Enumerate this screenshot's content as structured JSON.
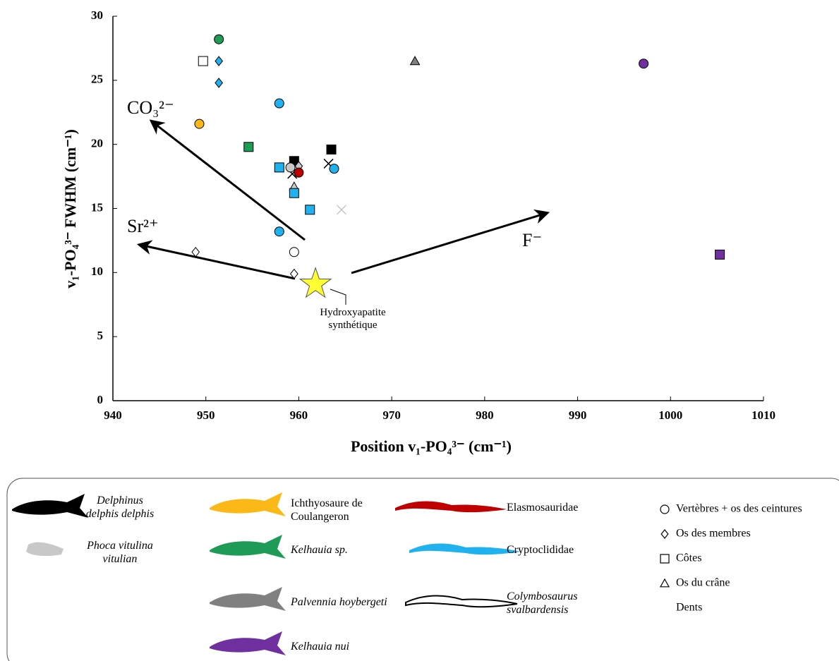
{
  "chart_data": {
    "type": "scatter",
    "xlabel": "Position v₁-PO₄³⁻ (cm⁻¹)",
    "ylabel": "v₁-PO₄³⁻ FWHM (cm⁻¹)",
    "xlim": [
      940,
      1010
    ],
    "xticks": [
      940,
      950,
      960,
      970,
      980,
      990,
      1000,
      1010
    ],
    "ylim": [
      0,
      30
    ],
    "yticks": [
      0,
      5,
      10,
      15,
      20,
      25,
      30
    ],
    "series": [
      {
        "name": "Delphinus delphis delphis",
        "italic": true,
        "color": "#000000",
        "x": [
          959.5,
          963.5,
          959.3,
          963.2
        ],
        "values": [
          18.7,
          19.6,
          17.7,
          18.5
        ],
        "markers": [
          "square",
          "square",
          "x",
          "x"
        ]
      },
      {
        "name": "Phoca vitulina vitulian",
        "italic": true,
        "color": "#c8c8c8",
        "x": [
          959.1,
          960.0,
          959.5,
          964.6
        ],
        "values": [
          18.2,
          18.3,
          16.7,
          14.9
        ],
        "markers": [
          "circle",
          "diamond",
          "triangle",
          "x"
        ]
      },
      {
        "name": "Ichthyosaure de Coulangeron",
        "italic": false,
        "color": "#fbb917",
        "x": [
          949.3
        ],
        "values": [
          21.6
        ],
        "markers": [
          "circle"
        ]
      },
      {
        "name": "Kelhauia sp.",
        "italic": true,
        "color": "#1e9c57",
        "x": [
          951.4,
          954.6
        ],
        "values": [
          28.2,
          19.8
        ],
        "markers": [
          "circle",
          "square"
        ]
      },
      {
        "name": "Palvennia hoybergeti",
        "italic": true,
        "color": "#808080",
        "x": [
          972.5
        ],
        "values": [
          26.5
        ],
        "markers": [
          "triangle"
        ]
      },
      {
        "name": "Kelhauia  nui",
        "italic": true,
        "color": "#7030a0",
        "x": [
          997.1,
          1005.3
        ],
        "values": [
          26.3,
          11.4
        ],
        "markers": [
          "circle",
          "square"
        ]
      },
      {
        "name": "Elasmosauridae",
        "italic": false,
        "color": "#c00000",
        "x": [
          960.0
        ],
        "values": [
          17.8
        ],
        "markers": [
          "circle"
        ]
      },
      {
        "name": "Cryptoclididae",
        "italic": false,
        "color": "#1fb2ef",
        "x": [
          951.4,
          951.4,
          957.9,
          963.8,
          957.9,
          957.9,
          959.5,
          961.2
        ],
        "values": [
          26.5,
          24.8,
          23.2,
          18.1,
          13.2,
          18.2,
          16.2,
          14.9
        ],
        "markers": [
          "diamond",
          "diamond",
          "circle",
          "circle",
          "circle",
          "square",
          "square",
          "square"
        ]
      },
      {
        "name": "Colymbosaurus svalbardensis",
        "italic": true,
        "color": "#ffffff",
        "x": [
          949.7,
          959.5,
          948.9,
          959.5
        ],
        "values": [
          26.5,
          11.6,
          11.6,
          9.9
        ],
        "markers": [
          "square",
          "circle",
          "diamond",
          "diamond"
        ]
      }
    ],
    "reference": {
      "label": "Hydroxyapatite synthétique",
      "x": 961.8,
      "y": 9.1,
      "color": "#ffff33"
    },
    "annotations": [
      "CO₃²⁻",
      "Sr²⁺",
      "F⁻"
    ],
    "shape_legend": [
      {
        "label": "Vertèbres + os des ceintures",
        "marker": "circle"
      },
      {
        "label": "Os des membres",
        "marker": "diamond"
      },
      {
        "label": "Côtes",
        "marker": "square"
      },
      {
        "label": "Os du crâne",
        "marker": "triangle"
      },
      {
        "label": "Dents",
        "marker": "x"
      }
    ]
  }
}
